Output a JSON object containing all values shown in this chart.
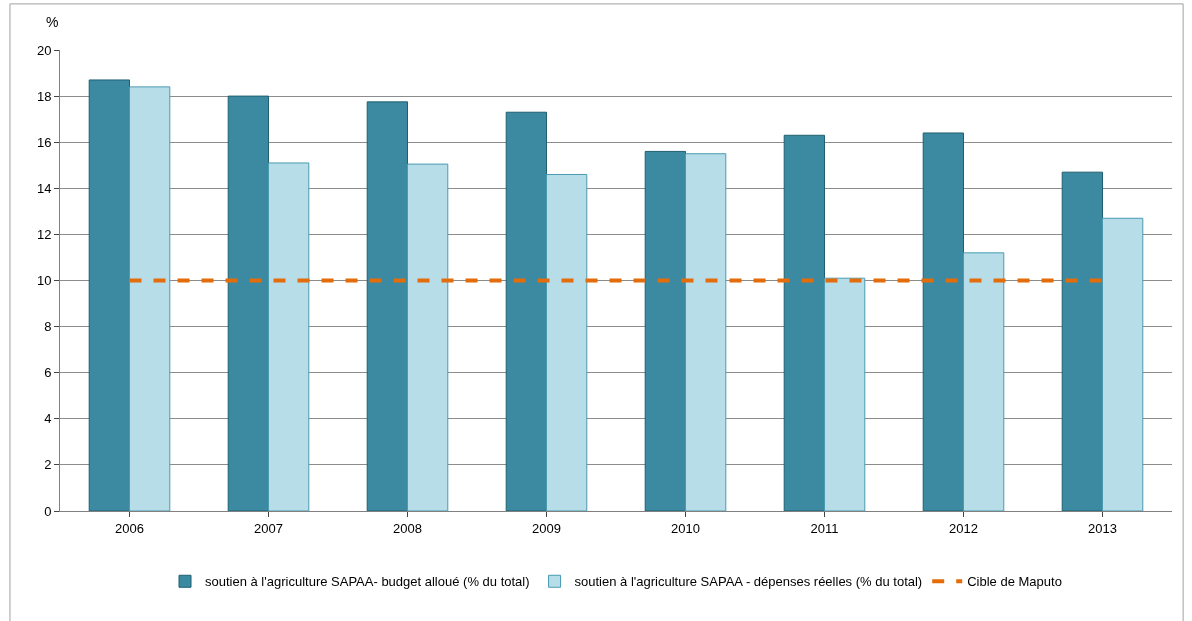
{
  "chart_data": {
    "type": "bar",
    "ylabel": "%",
    "categories": [
      "2006",
      "2007",
      "2008",
      "2009",
      "2010",
      "2011",
      "2012",
      "2013"
    ],
    "series": [
      {
        "name": "soutien à l'agriculture SAPAA- budget alloué (% du total)",
        "color": "#3b8aa1",
        "values": [
          18.7,
          18.0,
          17.75,
          17.3,
          15.6,
          16.3,
          16.4,
          14.7
        ]
      },
      {
        "name": "soutien à l'agriculture SAPAA - dépenses réelles (% du total)",
        "color": "#b7dde8",
        "values": [
          18.4,
          15.1,
          15.05,
          14.6,
          15.5,
          10.1,
          11.2,
          12.7
        ]
      },
      {
        "name": "Cible de Maputo",
        "type": "line",
        "color": "#e46c0a",
        "line_style": "dashed",
        "values": [
          10,
          10,
          10,
          10,
          10,
          10,
          10,
          10
        ]
      }
    ],
    "ylim": [
      0,
      20
    ],
    "yticks": [
      0,
      2,
      4,
      6,
      8,
      10,
      12,
      14,
      16,
      18,
      20
    ],
    "grid": "y",
    "legend": "bottom"
  }
}
